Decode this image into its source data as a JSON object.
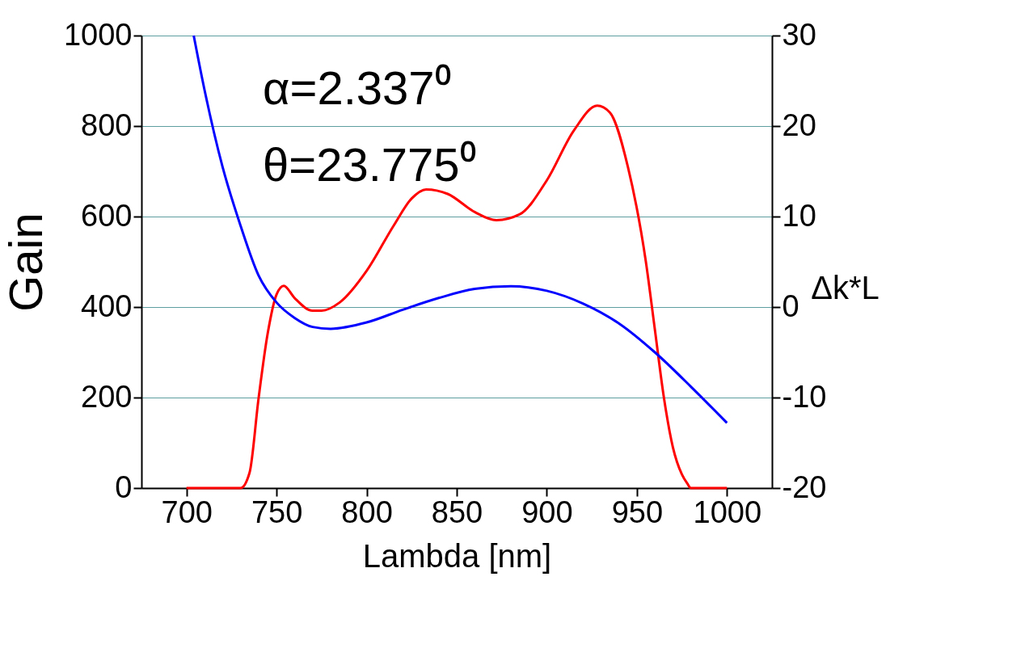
{
  "chart_data": {
    "type": "line",
    "xlabel": "Lambda [nm]",
    "ylabel": "Gain",
    "y2label": "Δk*L",
    "xlim": [
      675,
      1025
    ],
    "xticks": [
      700,
      750,
      800,
      850,
      900,
      950,
      1000
    ],
    "ylim": [
      0,
      1000
    ],
    "yticks": [
      0,
      200,
      400,
      600,
      800,
      1000
    ],
    "y2lim": [
      -20,
      30
    ],
    "y2ticks": [
      -20,
      -10,
      0,
      10,
      20,
      30
    ],
    "grid": "y",
    "line_style": "solid",
    "annotations": [
      "α=2.337⁰",
      "θ=23.775⁰"
    ],
    "series": [
      {
        "color": "#ff0000",
        "x": [
          700,
          730,
          735,
          740,
          745,
          750,
          754,
          760,
          770,
          775,
          785,
          800,
          815,
          825,
          833,
          845,
          860,
          872,
          885,
          900,
          915,
          928,
          935,
          945,
          955,
          960,
          965,
          970,
          975,
          978,
          980,
          1000
        ],
        "values": [
          0,
          0,
          34,
          198,
          340,
          428,
          447,
          420,
          392,
          392,
          410,
          480,
          580,
          640,
          660,
          650,
          610,
          592,
          605,
          680,
          790,
          845,
          830,
          710,
          500,
          350,
          200,
          90,
          30,
          10,
          0,
          0
        ]
      },
      {
        "color": "#0000ff",
        "axis": "y2",
        "x": [
          704,
          710,
          720,
          730,
          740,
          750,
          760,
          770,
          780,
          800,
          820,
          840,
          860,
          880,
          900,
          920,
          940,
          960,
          980,
          1000
        ],
        "values": [
          30,
          24,
          15.5,
          9,
          3.5,
          0.5,
          -1.2,
          -2.2,
          -2.4,
          -1.7,
          -0.3,
          1.0,
          2.0,
          2.3,
          1.8,
          0.4,
          -1.8,
          -5,
          -8.8,
          -12.8
        ]
      }
    ]
  }
}
